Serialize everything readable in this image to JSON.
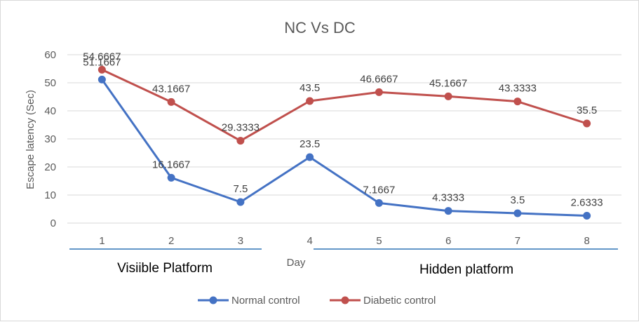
{
  "chart_data": {
    "type": "line",
    "title": "NC Vs DC",
    "xlabel": "Day",
    "ylabel": "Escape latency (Sec)",
    "categories": [
      "1",
      "2",
      "3",
      "4",
      "5",
      "6",
      "7",
      "8"
    ],
    "y_ticks": [
      "0",
      "10",
      "20",
      "30",
      "40",
      "50",
      "60"
    ],
    "ylim": [
      0,
      60
    ],
    "grid": "horizontal",
    "legend_position": "bottom",
    "series": [
      {
        "name": "Normal control",
        "color": "#4472c4",
        "values": [
          51.1667,
          16.1667,
          7.5,
          23.5,
          7.1667,
          4.3333,
          3.5,
          2.6333
        ],
        "labels": [
          "51.1667",
          "16.1667",
          "7.5",
          "23.5",
          "7.1667",
          "4.3333",
          "3.5",
          "2.6333"
        ]
      },
      {
        "name": "Diabetic control",
        "color": "#c0504d",
        "values": [
          54.6667,
          43.1667,
          29.3333,
          43.5,
          46.6667,
          45.1667,
          43.3333,
          35.5
        ],
        "labels": [
          "54.6667",
          "43.1667",
          "29.3333",
          "43.5",
          "46.6667",
          "45.1667",
          "43.3333",
          "35.5"
        ]
      }
    ],
    "annotations": [
      {
        "text": "Visiible Platform",
        "day_range": [
          "1",
          "3"
        ]
      },
      {
        "text": "Hidden platform",
        "day_range": [
          "4",
          "8"
        ]
      }
    ]
  }
}
